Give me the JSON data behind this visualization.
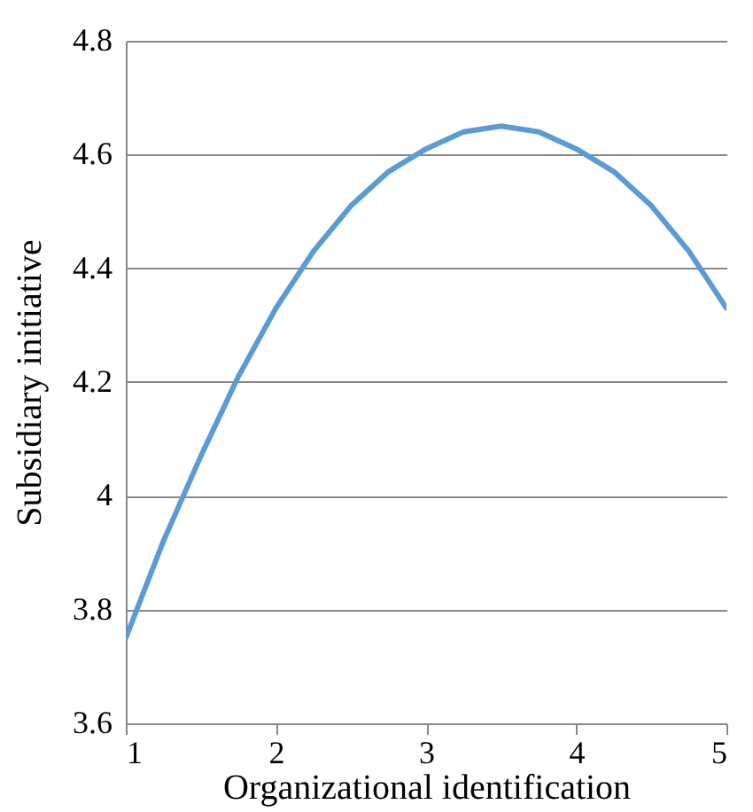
{
  "chart_data": {
    "type": "line",
    "xlabel": "Organizational identification",
    "ylabel": "Subsidiary initiative",
    "x": [
      1,
      1.25,
      1.5,
      1.75,
      2,
      2.25,
      2.5,
      2.75,
      3,
      3.25,
      3.5,
      3.75,
      4,
      4.25,
      4.5,
      4.75,
      5
    ],
    "series": [
      {
        "color": "#5b9bd5",
        "values": [
          3.75,
          3.92,
          4.07,
          4.21,
          4.33,
          4.43,
          4.51,
          4.57,
          4.61,
          4.64,
          4.65,
          4.64,
          4.61,
          4.57,
          4.51,
          4.43,
          4.33
        ]
      }
    ],
    "xlim": [
      1,
      5
    ],
    "xticks": [
      1,
      2,
      3,
      4,
      5
    ],
    "ylim": [
      3.6,
      4.8
    ],
    "yticks": [
      3.6,
      3.8,
      4,
      4.2,
      4.4,
      4.6,
      4.8
    ],
    "grid": "y",
    "marker": "none",
    "line_style": "solid",
    "legend": false
  }
}
